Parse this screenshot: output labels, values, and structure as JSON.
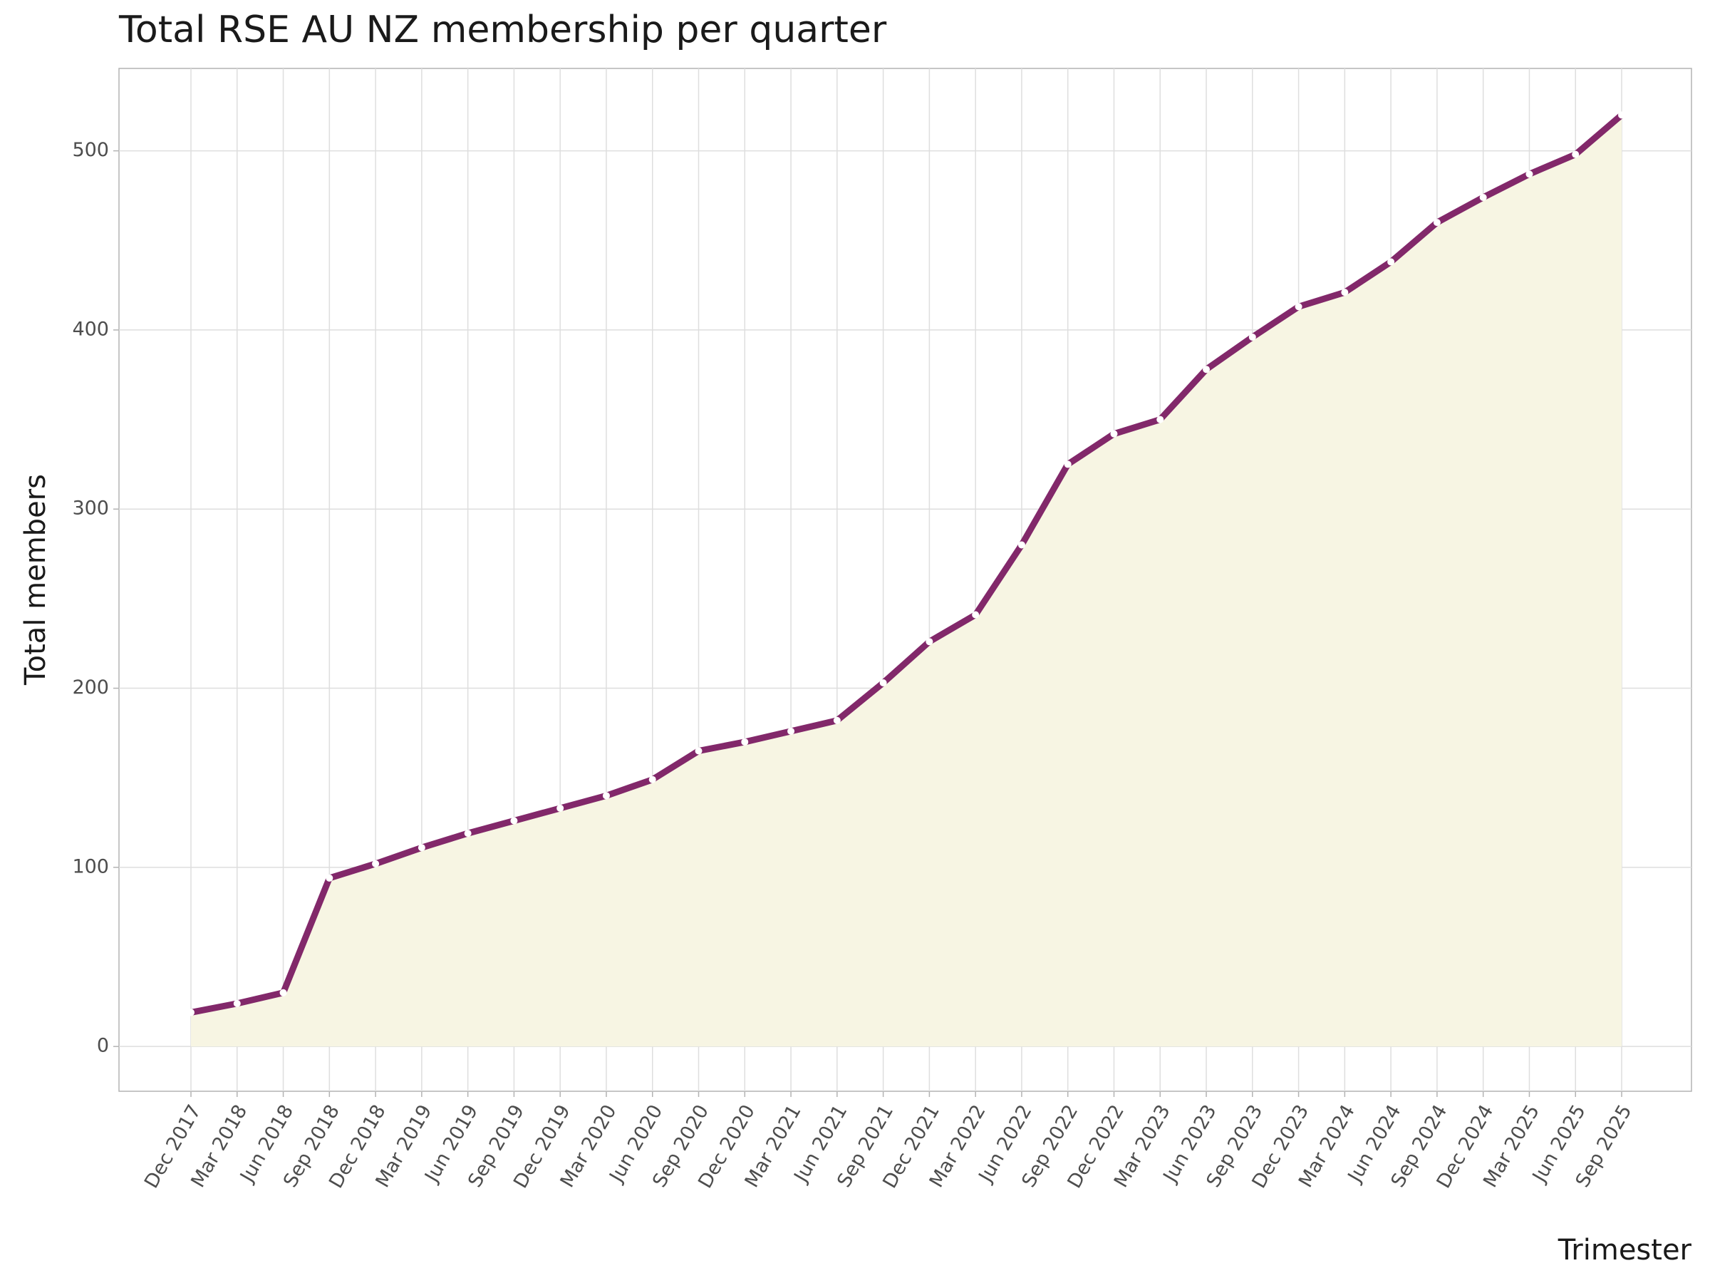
{
  "chart_data": {
    "type": "area",
    "title": "Total RSE AU NZ membership per quarter",
    "x_label": "Trimester",
    "y_label": "Total members",
    "categories": [
      "Dec 2017",
      "Mar 2018",
      "Jun 2018",
      "Sep 2018",
      "Dec 2018",
      "Mar 2019",
      "Jun 2019",
      "Sep 2019",
      "Dec 2019",
      "Mar 2020",
      "Jun 2020",
      "Sep 2020",
      "Dec 2020",
      "Mar 2021",
      "Jun 2021",
      "Sep 2021",
      "Dec 2021",
      "Mar 2022",
      "Jun 2022",
      "Sep 2022",
      "Dec 2022",
      "Mar 2023",
      "Jun 2023",
      "Sep 2023",
      "Dec 2023",
      "Mar 2024",
      "Jun 2024",
      "Sep 2024",
      "Dec 2024",
      "Mar 2025",
      "Jun 2025",
      "Sep 2025"
    ],
    "values": [
      19,
      24,
      30,
      94,
      102,
      111,
      119,
      126,
      133,
      140,
      149,
      165,
      170,
      176,
      182,
      203,
      226,
      241,
      280,
      325,
      342,
      350,
      378,
      396,
      413,
      421,
      438,
      460,
      474,
      487,
      498,
      520
    ],
    "color": "#82286a",
    "fill_color": "#f7f5e3",
    "ylim": [
      -25,
      546
    ],
    "yticks": [
      0,
      100,
      200,
      300,
      400,
      500
    ],
    "grid": true
  }
}
